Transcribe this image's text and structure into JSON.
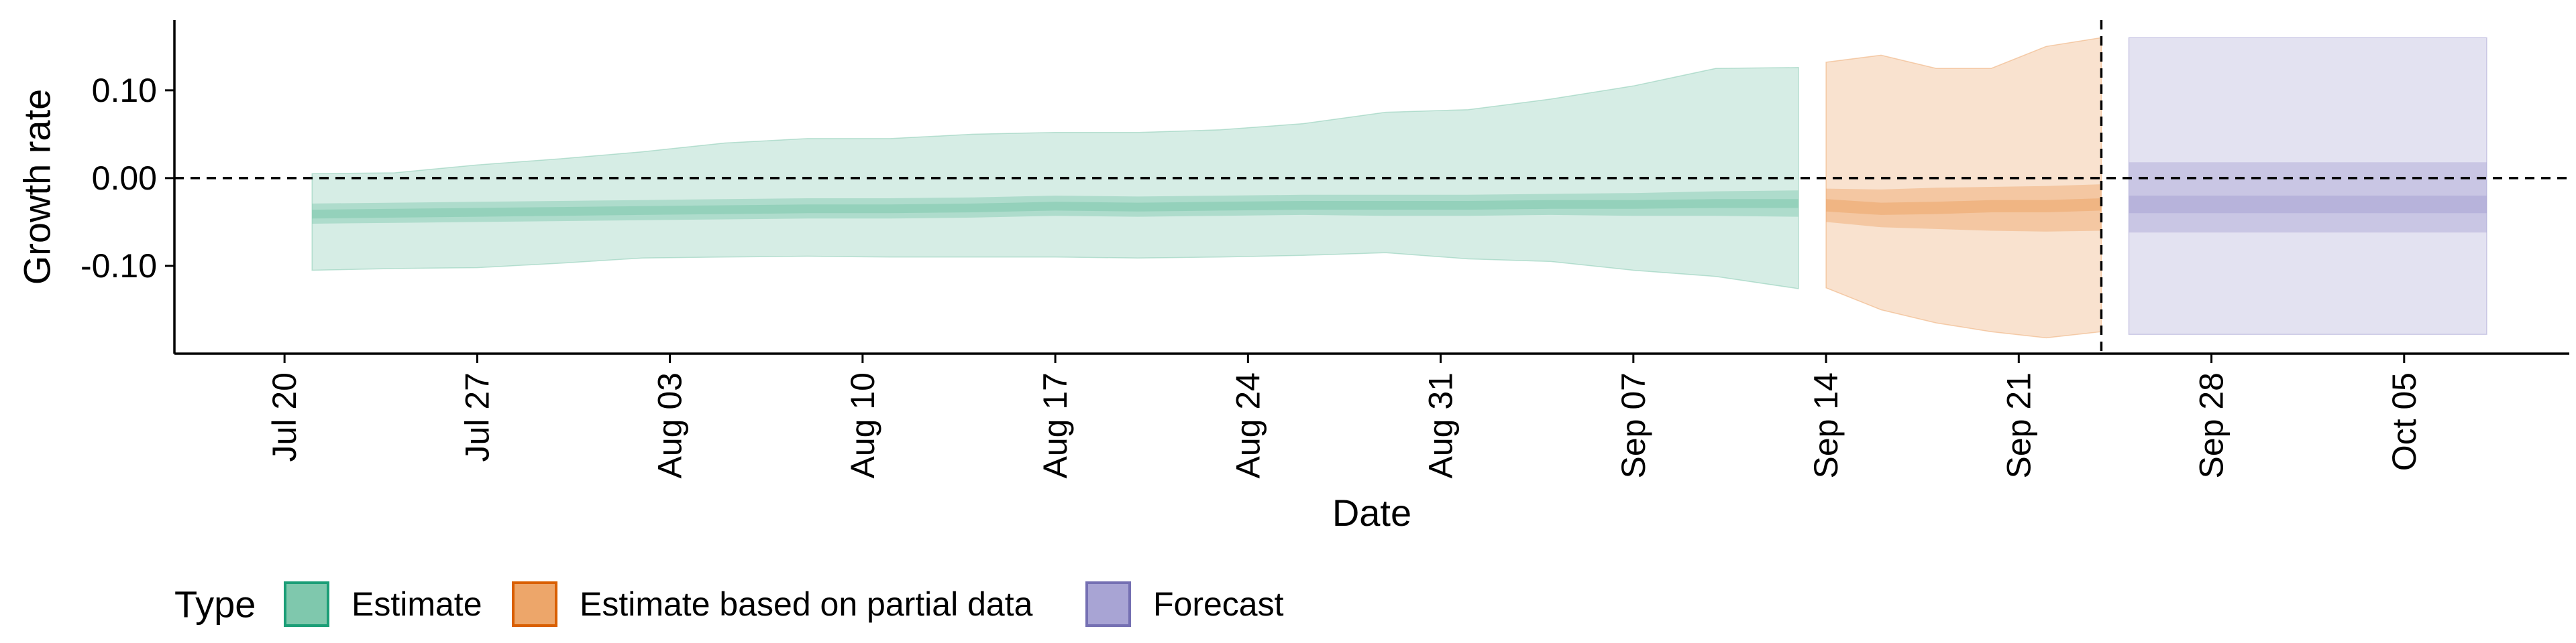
{
  "chart_data": {
    "type": "area",
    "title": "",
    "xlabel": "Date",
    "ylabel": "Growth rate",
    "x_range": [
      "2020-07-16",
      "2020-10-11"
    ],
    "y_range": [
      -0.2,
      0.18
    ],
    "x_ticks": [
      {
        "date": "2020-07-20",
        "label": "Jul 20"
      },
      {
        "date": "2020-07-27",
        "label": "Jul 27"
      },
      {
        "date": "2020-08-03",
        "label": "Aug 03"
      },
      {
        "date": "2020-08-10",
        "label": "Aug 10"
      },
      {
        "date": "2020-08-17",
        "label": "Aug 17"
      },
      {
        "date": "2020-08-24",
        "label": "Aug 24"
      },
      {
        "date": "2020-08-31",
        "label": "Aug 31"
      },
      {
        "date": "2020-09-07",
        "label": "Sep 07"
      },
      {
        "date": "2020-09-14",
        "label": "Sep 14"
      },
      {
        "date": "2020-09-21",
        "label": "Sep 21"
      },
      {
        "date": "2020-09-28",
        "label": "Sep 28"
      },
      {
        "date": "2020-10-05",
        "label": "Oct 05"
      }
    ],
    "y_ticks": [
      {
        "value": 0.1,
        "label": "0.10"
      },
      {
        "value": 0.0,
        "label": "0.00"
      },
      {
        "value": -0.1,
        "label": "-0.10"
      }
    ],
    "reference_lines": {
      "horizontal_y": 0.0,
      "vertical_date": "2020-09-24"
    },
    "grid": false,
    "legend_position": "bottom-left",
    "legend_title": "Type",
    "series": [
      {
        "name": "Estimate",
        "color": "#1b9e77",
        "fill": "#7fc8ad",
        "points": [
          {
            "date": "2020-07-21",
            "median": -0.041,
            "lower50": -0.052,
            "upper50": -0.029,
            "lower90": -0.105,
            "upper90": 0.005,
            "lower20": -0.046,
            "upper20": -0.036
          },
          {
            "date": "2020-07-24",
            "median": -0.04,
            "lower50": -0.051,
            "upper50": -0.028,
            "lower90": -0.103,
            "upper90": 0.006,
            "lower20": -0.045,
            "upper20": -0.035
          },
          {
            "date": "2020-07-27",
            "median": -0.039,
            "lower50": -0.05,
            "upper50": -0.027,
            "lower90": -0.102,
            "upper90": 0.015,
            "lower20": -0.044,
            "upper20": -0.034
          },
          {
            "date": "2020-07-30",
            "median": -0.038,
            "lower50": -0.049,
            "upper50": -0.026,
            "lower90": -0.097,
            "upper90": 0.022,
            "lower20": -0.043,
            "upper20": -0.033
          },
          {
            "date": "2020-08-02",
            "median": -0.037,
            "lower50": -0.048,
            "upper50": -0.025,
            "lower90": -0.091,
            "upper90": 0.03,
            "lower20": -0.042,
            "upper20": -0.032
          },
          {
            "date": "2020-08-05",
            "median": -0.036,
            "lower50": -0.047,
            "upper50": -0.024,
            "lower90": -0.09,
            "upper90": 0.04,
            "lower20": -0.041,
            "upper20": -0.031
          },
          {
            "date": "2020-08-08",
            "median": -0.035,
            "lower50": -0.046,
            "upper50": -0.023,
            "lower90": -0.089,
            "upper90": 0.045,
            "lower20": -0.04,
            "upper20": -0.03
          },
          {
            "date": "2020-08-11",
            "median": -0.035,
            "lower50": -0.046,
            "upper50": -0.023,
            "lower90": -0.09,
            "upper90": 0.045,
            "lower20": -0.04,
            "upper20": -0.03
          },
          {
            "date": "2020-08-14",
            "median": -0.034,
            "lower50": -0.045,
            "upper50": -0.022,
            "lower90": -0.09,
            "upper90": 0.05,
            "lower20": -0.039,
            "upper20": -0.029
          },
          {
            "date": "2020-08-17",
            "median": -0.032,
            "lower50": -0.043,
            "upper50": -0.02,
            "lower90": -0.09,
            "upper90": 0.052,
            "lower20": -0.037,
            "upper20": -0.027
          },
          {
            "date": "2020-08-20",
            "median": -0.033,
            "lower50": -0.044,
            "upper50": -0.021,
            "lower90": -0.091,
            "upper90": 0.052,
            "lower20": -0.038,
            "upper20": -0.028
          },
          {
            "date": "2020-08-23",
            "median": -0.032,
            "lower50": -0.043,
            "upper50": -0.02,
            "lower90": -0.09,
            "upper90": 0.055,
            "lower20": -0.037,
            "upper20": -0.027
          },
          {
            "date": "2020-08-26",
            "median": -0.031,
            "lower50": -0.042,
            "upper50": -0.019,
            "lower90": -0.088,
            "upper90": 0.062,
            "lower20": -0.036,
            "upper20": -0.026
          },
          {
            "date": "2020-08-29",
            "median": -0.031,
            "lower50": -0.043,
            "upper50": -0.019,
            "lower90": -0.085,
            "upper90": 0.075,
            "lower20": -0.036,
            "upper20": -0.026
          },
          {
            "date": "2020-09-01",
            "median": -0.031,
            "lower50": -0.043,
            "upper50": -0.019,
            "lower90": -0.092,
            "upper90": 0.078,
            "lower20": -0.036,
            "upper20": -0.026
          },
          {
            "date": "2020-09-04",
            "median": -0.03,
            "lower50": -0.042,
            "upper50": -0.018,
            "lower90": -0.095,
            "upper90": 0.09,
            "lower20": -0.035,
            "upper20": -0.025
          },
          {
            "date": "2020-09-07",
            "median": -0.03,
            "lower50": -0.043,
            "upper50": -0.017,
            "lower90": -0.105,
            "upper90": 0.105,
            "lower20": -0.035,
            "upper20": -0.025
          },
          {
            "date": "2020-09-10",
            "median": -0.029,
            "lower50": -0.043,
            "upper50": -0.015,
            "lower90": -0.112,
            "upper90": 0.125,
            "lower20": -0.034,
            "upper20": -0.024
          },
          {
            "date": "2020-09-13",
            "median": -0.029,
            "lower50": -0.044,
            "upper50": -0.014,
            "lower90": -0.126,
            "upper90": 0.126,
            "lower20": -0.034,
            "upper20": -0.024
          }
        ]
      },
      {
        "name": "Estimate based on partial data",
        "color": "#d95f02",
        "fill": "#eda66a",
        "points": [
          {
            "date": "2020-09-14",
            "median": -0.031,
            "lower50": -0.05,
            "upper50": -0.012,
            "lower90": -0.125,
            "upper90": 0.132,
            "lower20": -0.038,
            "upper20": -0.024
          },
          {
            "date": "2020-09-16",
            "median": -0.035,
            "lower50": -0.056,
            "upper50": -0.013,
            "lower90": -0.15,
            "upper90": 0.14,
            "lower20": -0.042,
            "upper20": -0.028
          },
          {
            "date": "2020-09-18",
            "median": -0.034,
            "lower50": -0.058,
            "upper50": -0.011,
            "lower90": -0.165,
            "upper90": 0.125,
            "lower20": -0.041,
            "upper20": -0.027
          },
          {
            "date": "2020-09-20",
            "median": -0.032,
            "lower50": -0.06,
            "upper50": -0.01,
            "lower90": -0.175,
            "upper90": 0.125,
            "lower20": -0.039,
            "upper20": -0.025
          },
          {
            "date": "2020-09-22",
            "median": -0.032,
            "lower50": -0.061,
            "upper50": -0.009,
            "lower90": -0.182,
            "upper90": 0.15,
            "lower20": -0.039,
            "upper20": -0.025
          },
          {
            "date": "2020-09-24",
            "median": -0.03,
            "lower50": -0.06,
            "upper50": -0.007,
            "lower90": -0.175,
            "upper90": 0.16,
            "lower20": -0.037,
            "upper20": -0.023
          }
        ]
      },
      {
        "name": "Forecast",
        "color": "#7570b3",
        "fill": "#a8a4d4",
        "points": [
          {
            "date": "2020-09-25",
            "median": -0.03,
            "lower50": -0.062,
            "upper50": 0.018,
            "lower90": -0.178,
            "upper90": 0.16,
            "lower20": -0.04,
            "upper20": -0.02
          },
          {
            "date": "2020-10-08",
            "median": -0.03,
            "lower50": -0.062,
            "upper50": 0.018,
            "lower90": -0.178,
            "upper90": 0.16,
            "lower20": -0.04,
            "upper20": -0.02
          }
        ]
      }
    ]
  }
}
